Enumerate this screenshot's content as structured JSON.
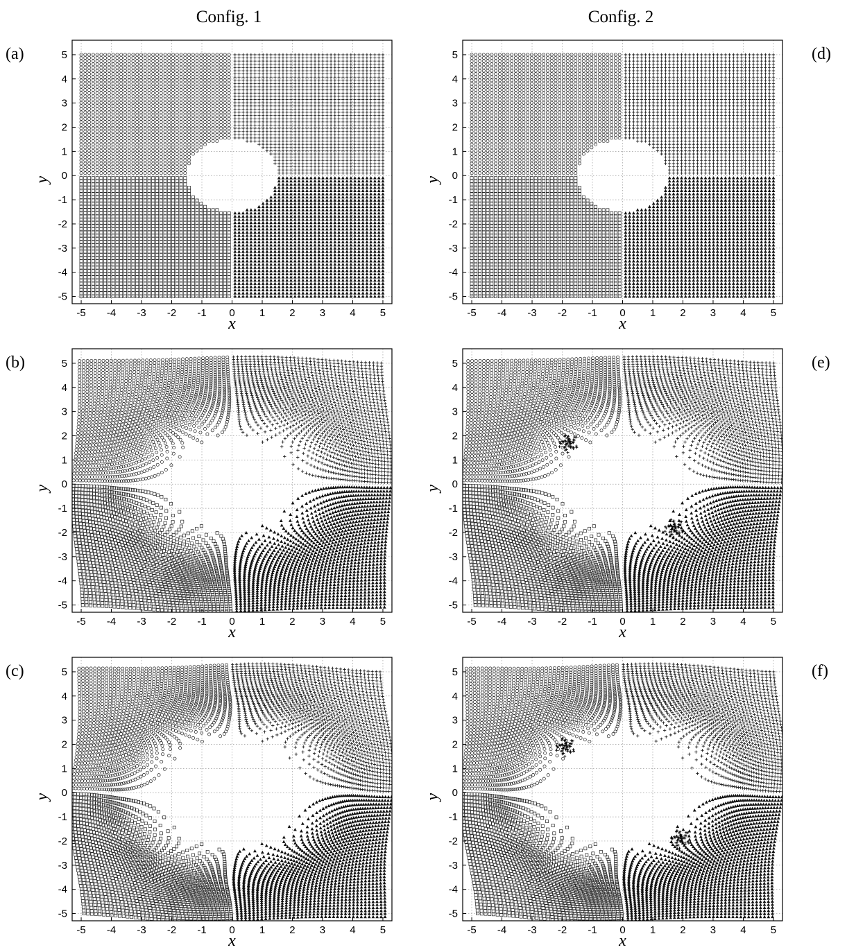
{
  "columns": [
    "Config. 1",
    "Config. 2"
  ],
  "chart_data": [
    {
      "panel": "(a)",
      "type": "scatter",
      "config": "Config. 1",
      "stage": 0,
      "xlabel": "x",
      "ylabel": "y",
      "xlim": [
        -5.3,
        5.3
      ],
      "ylim": [
        -5.3,
        5.6
      ],
      "xticks": [
        "-5",
        "-4",
        "-3",
        "-2",
        "-1",
        "0",
        "1",
        "2",
        "3",
        "4",
        "5"
      ],
      "yticks": [
        "5",
        "4",
        "3",
        "2",
        "1",
        "0",
        "-1",
        "-2",
        "-3",
        "-4",
        "-5"
      ],
      "grid": true,
      "series": [
        {
          "marker": "circle",
          "quadrant": "upper-left",
          "x_range": [
            -5,
            -0.1
          ],
          "y_range": [
            0.1,
            5
          ]
        },
        {
          "marker": "plus",
          "quadrant": "upper-right",
          "x_range": [
            0.1,
            5
          ],
          "y_range": [
            0.1,
            5
          ]
        },
        {
          "marker": "square",
          "quadrant": "lower-left",
          "x_range": [
            -5,
            -0.1
          ],
          "y_range": [
            -5,
            -0.1
          ]
        },
        {
          "marker": "triangle",
          "quadrant": "lower-right",
          "x_range": [
            0.1,
            5
          ],
          "y_range": [
            -5,
            -0.1
          ]
        }
      ],
      "hole": {
        "center": [
          0,
          0
        ],
        "radius": 1.5
      }
    },
    {
      "panel": "(b)",
      "type": "scatter",
      "config": "Config. 1",
      "stage": 1,
      "xlabel": "x",
      "ylabel": "y",
      "xlim": [
        -5.3,
        5.3
      ],
      "ylim": [
        -5.3,
        5.6
      ],
      "xticks": [
        "-5",
        "-4",
        "-3",
        "-2",
        "-1",
        "0",
        "1",
        "2",
        "3",
        "4",
        "5"
      ],
      "yticks": [
        "5",
        "4",
        "3",
        "2",
        "1",
        "0",
        "-1",
        "-2",
        "-3",
        "-4",
        "-5"
      ],
      "grid": true,
      "series": [
        {
          "marker": "circle",
          "quadrant": "upper-left",
          "x_range": [
            -5,
            -0.1
          ],
          "y_range": [
            0.1,
            5
          ]
        },
        {
          "marker": "plus",
          "quadrant": "upper-right",
          "x_range": [
            0.1,
            5
          ],
          "y_range": [
            0.1,
            5
          ]
        },
        {
          "marker": "square",
          "quadrant": "lower-left",
          "x_range": [
            -5,
            -0.1
          ],
          "y_range": [
            -5,
            -0.1
          ]
        },
        {
          "marker": "triangle",
          "quadrant": "lower-right",
          "x_range": [
            0.1,
            5
          ],
          "y_range": [
            -5,
            -0.1
          ]
        }
      ],
      "hole": {
        "center": [
          0,
          0
        ],
        "radius": 2.0
      }
    },
    {
      "panel": "(c)",
      "type": "scatter",
      "config": "Config. 1",
      "stage": 2,
      "xlabel": "x",
      "ylabel": "y",
      "xlim": [
        -5.3,
        5.3
      ],
      "ylim": [
        -5.3,
        5.6
      ],
      "xticks": [
        "-5",
        "-4",
        "-3",
        "-2",
        "-1",
        "0",
        "1",
        "2",
        "3",
        "4",
        "5"
      ],
      "yticks": [
        "5",
        "4",
        "3",
        "2",
        "1",
        "0",
        "-1",
        "-2",
        "-3",
        "-4",
        "-5"
      ],
      "grid": true,
      "series": [
        {
          "marker": "circle",
          "quadrant": "upper-left",
          "x_range": [
            -5,
            -0.1
          ],
          "y_range": [
            0.1,
            5
          ]
        },
        {
          "marker": "plus",
          "quadrant": "upper-right",
          "x_range": [
            0.1,
            5
          ],
          "y_range": [
            0.1,
            5
          ]
        },
        {
          "marker": "square",
          "quadrant": "lower-left",
          "x_range": [
            -5,
            -0.1
          ],
          "y_range": [
            -5,
            -0.1
          ]
        },
        {
          "marker": "triangle",
          "quadrant": "lower-right",
          "x_range": [
            0.1,
            5
          ],
          "y_range": [
            -5,
            -0.1
          ]
        }
      ],
      "hole": {
        "center": [
          0,
          0
        ],
        "radius": 2.3
      }
    },
    {
      "panel": "(d)",
      "type": "scatter",
      "config": "Config. 2",
      "stage": 0,
      "xlabel": "x",
      "ylabel": "y",
      "xlim": [
        -5.3,
        5.3
      ],
      "ylim": [
        -5.3,
        5.6
      ],
      "xticks": [
        "-5",
        "-4",
        "-3",
        "-2",
        "-1",
        "0",
        "1",
        "2",
        "3",
        "4",
        "5"
      ],
      "yticks": [
        "5",
        "4",
        "3",
        "2",
        "1",
        "0",
        "-1",
        "-2",
        "-3",
        "-4",
        "-5"
      ],
      "grid": true,
      "series": [
        {
          "marker": "circle",
          "quadrant": "upper-left",
          "x_range": [
            -5,
            -0.1
          ],
          "y_range": [
            0.1,
            5
          ]
        },
        {
          "marker": "plus",
          "quadrant": "upper-right",
          "x_range": [
            0.1,
            5
          ],
          "y_range": [
            0.1,
            5
          ]
        },
        {
          "marker": "square",
          "quadrant": "lower-left",
          "x_range": [
            -5,
            -0.1
          ],
          "y_range": [
            -5,
            -0.1
          ]
        },
        {
          "marker": "triangle",
          "quadrant": "lower-right",
          "x_range": [
            0.1,
            5
          ],
          "y_range": [
            -5,
            -0.1
          ]
        }
      ],
      "hole": {
        "center": [
          0,
          0
        ],
        "radius": 1.5
      }
    },
    {
      "panel": "(e)",
      "type": "scatter",
      "config": "Config. 2",
      "stage": 1,
      "xlabel": "x",
      "ylabel": "y",
      "xlim": [
        -5.3,
        5.3
      ],
      "ylim": [
        -5.3,
        5.6
      ],
      "xticks": [
        "-5",
        "-4",
        "-3",
        "-2",
        "-1",
        "0",
        "1",
        "2",
        "3",
        "4",
        "5"
      ],
      "yticks": [
        "5",
        "4",
        "3",
        "2",
        "1",
        "0",
        "-1",
        "-2",
        "-3",
        "-4",
        "-5"
      ],
      "grid": true,
      "series": [
        {
          "marker": "circle",
          "quadrant": "upper-left",
          "x_range": [
            -5,
            -0.1
          ],
          "y_range": [
            0.1,
            5
          ]
        },
        {
          "marker": "plus",
          "quadrant": "upper-right",
          "x_range": [
            0.1,
            5
          ],
          "y_range": [
            0.1,
            5
          ]
        },
        {
          "marker": "square",
          "quadrant": "lower-left",
          "x_range": [
            -5,
            -0.1
          ],
          "y_range": [
            -5,
            -0.1
          ]
        },
        {
          "marker": "triangle",
          "quadrant": "lower-right",
          "x_range": [
            0.1,
            5
          ],
          "y_range": [
            -5,
            -0.1
          ]
        }
      ],
      "hole": {
        "center": [
          0,
          0
        ],
        "radius": 2.0
      },
      "clusters": [
        [
          -1.8,
          1.7
        ],
        [
          1.7,
          -1.8
        ]
      ]
    },
    {
      "panel": "(f)",
      "type": "scatter",
      "config": "Config. 2",
      "stage": 2,
      "xlabel": "x",
      "ylabel": "y",
      "xlim": [
        -5.3,
        5.3
      ],
      "ylim": [
        -5.3,
        5.6
      ],
      "xticks": [
        "-5",
        "-4",
        "-3",
        "-2",
        "-1",
        "0",
        "1",
        "2",
        "3",
        "4",
        "5"
      ],
      "yticks": [
        "5",
        "4",
        "3",
        "2",
        "1",
        "0",
        "-1",
        "-2",
        "-3",
        "-4",
        "-5"
      ],
      "grid": true,
      "series": [
        {
          "marker": "circle",
          "quadrant": "upper-left",
          "x_range": [
            -5,
            -0.1
          ],
          "y_range": [
            0.1,
            5
          ]
        },
        {
          "marker": "plus",
          "quadrant": "upper-right",
          "x_range": [
            0.1,
            5
          ],
          "y_range": [
            0.1,
            5
          ]
        },
        {
          "marker": "square",
          "quadrant": "lower-left",
          "x_range": [
            -5,
            -0.1
          ],
          "y_range": [
            -5,
            -0.1
          ]
        },
        {
          "marker": "triangle",
          "quadrant": "lower-right",
          "x_range": [
            0.1,
            5
          ],
          "y_range": [
            -5,
            -0.1
          ]
        }
      ],
      "hole": {
        "center": [
          0,
          0
        ],
        "radius": 2.3
      },
      "clusters": [
        [
          -1.9,
          1.9
        ],
        [
          1.9,
          -1.9
        ]
      ]
    }
  ]
}
